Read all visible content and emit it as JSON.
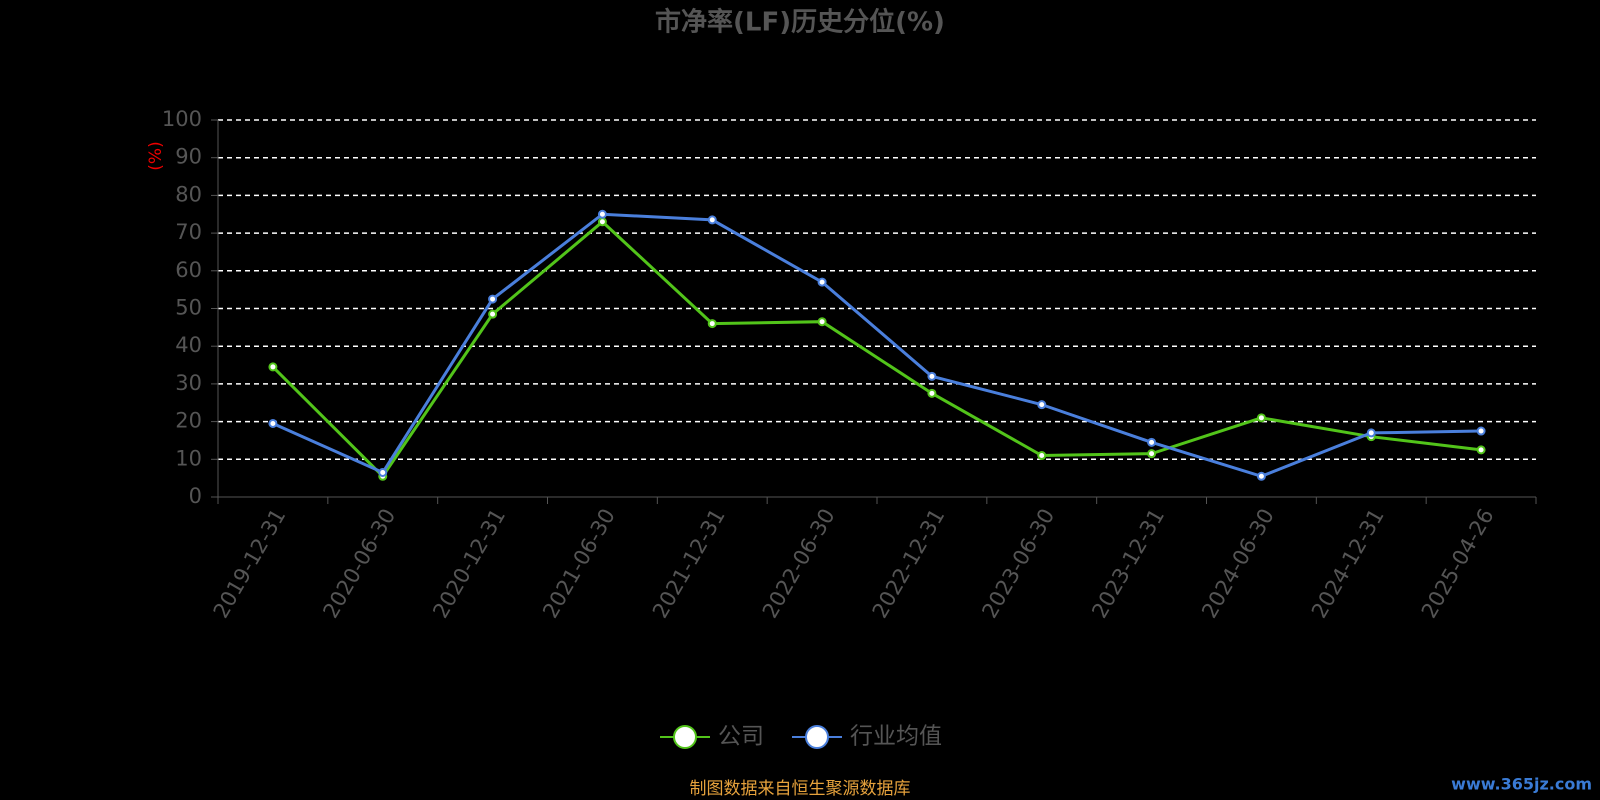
{
  "chart_data": {
    "type": "line",
    "title": "市净率(LF)历史分位(%)",
    "y_label": "(%)",
    "categories": [
      "2019-12-31",
      "2020-06-30",
      "2020-12-31",
      "2021-06-30",
      "2021-12-31",
      "2022-06-30",
      "2022-12-31",
      "2023-06-30",
      "2023-12-31",
      "2024-06-30",
      "2024-12-31",
      "2025-04-26"
    ],
    "series": [
      {
        "name": "公司",
        "color": "#52c41a",
        "values": [
          34.5,
          5.5,
          48.5,
          73,
          46,
          46.5,
          27.5,
          11,
          11.5,
          21,
          16,
          12.5
        ]
      },
      {
        "name": "行业均值",
        "color": "#4a7fdc",
        "values": [
          19.5,
          6.5,
          52.5,
          75,
          73.5,
          57,
          32,
          24.5,
          14.5,
          5.5,
          17,
          17.5
        ]
      }
    ],
    "ylim": [
      0,
      100
    ],
    "yticks": [
      0,
      10,
      20,
      30,
      40,
      50,
      60,
      70,
      80,
      90,
      100
    ],
    "grid": true,
    "legend": "bottom",
    "source": "制图数据来自恒生聚源数据库",
    "watermark": "www.365jz.com"
  }
}
